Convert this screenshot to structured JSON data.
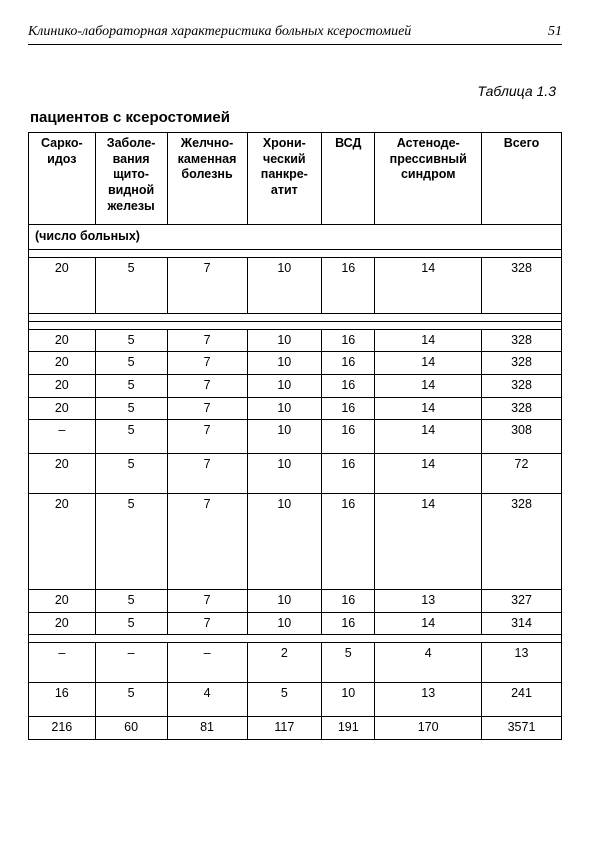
{
  "header": {
    "running_title": "Клинико-лабораторная характеристика больных ксеростомией",
    "page_number": "51"
  },
  "table_label": "Таблица 1.3",
  "subtitle": "пациентов с ксеростомией",
  "table": {
    "columns": [
      "Сарко-\nидоз",
      "Заболе-\nвания\nщито-\nвидной\nжелезы",
      "Желчно-\nкаменная\nболезнь",
      "Хрони-\nческий\nпанкре-\nатит",
      "ВСД",
      "Астеноде-\nпрессивный\nсиндром",
      "Всего"
    ],
    "col_widths": [
      "12.5%",
      "13.5%",
      "15%",
      "14%",
      "10%",
      "20%",
      "15%"
    ],
    "section_label": "(число больных)",
    "rows": [
      {
        "class": "tall",
        "cells": [
          "20",
          "5",
          "7",
          "10",
          "16",
          "14",
          "328"
        ]
      },
      {
        "class": "normal",
        "cells": [
          "20",
          "5",
          "7",
          "10",
          "16",
          "14",
          "328"
        ]
      },
      {
        "class": "normal",
        "cells": [
          "20",
          "5",
          "7",
          "10",
          "16",
          "14",
          "328"
        ]
      },
      {
        "class": "normal",
        "cells": [
          "20",
          "5",
          "7",
          "10",
          "16",
          "14",
          "328"
        ]
      },
      {
        "class": "normal",
        "cells": [
          "20",
          "5",
          "7",
          "10",
          "16",
          "14",
          "328"
        ]
      },
      {
        "class": "mid",
        "cells": [
          "–",
          "5",
          "7",
          "10",
          "16",
          "14",
          "308"
        ]
      },
      {
        "class": "mid2",
        "cells": [
          "20",
          "5",
          "7",
          "10",
          "16",
          "14",
          "72"
        ]
      },
      {
        "class": "xtall2",
        "cells": [
          "20",
          "5",
          "7",
          "10",
          "16",
          "14",
          "328"
        ]
      },
      {
        "class": "normal",
        "cells": [
          "20",
          "5",
          "7",
          "10",
          "16",
          "13",
          "327"
        ]
      },
      {
        "class": "normal",
        "cells": [
          "20",
          "5",
          "7",
          "10",
          "16",
          "14",
          "314"
        ]
      },
      {
        "class": "mid2",
        "cells": [
          "–",
          "–",
          "–",
          "2",
          "5",
          "4",
          "13"
        ]
      },
      {
        "class": "mid",
        "cells": [
          "16",
          "5",
          "4",
          "5",
          "10",
          "13",
          "241"
        ]
      },
      {
        "class": "normal",
        "cells": [
          "216",
          "60",
          "81",
          "117",
          "191",
          "170",
          "3571"
        ]
      }
    ],
    "spacer_after_rows": [
      0,
      9
    ],
    "pre_row_spacer_before": [
      1
    ]
  }
}
